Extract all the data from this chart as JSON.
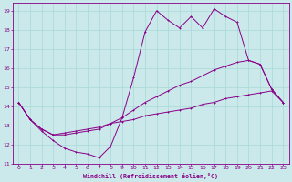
{
  "xlabel": "Windchill (Refroidissement éolien,°C)",
  "xlim": [
    -0.5,
    23.5
  ],
  "ylim": [
    11,
    19.4
  ],
  "xticks": [
    0,
    1,
    2,
    3,
    4,
    5,
    6,
    7,
    8,
    9,
    10,
    11,
    12,
    13,
    14,
    15,
    16,
    17,
    18,
    19,
    20,
    21,
    22,
    23
  ],
  "yticks": [
    11,
    12,
    13,
    14,
    15,
    16,
    17,
    18,
    19
  ],
  "background_color": "#cbe9ea",
  "line_color": "#880088",
  "grid_color": "#a8d8d8",
  "line1_x": [
    0,
    1,
    2,
    3,
    4,
    5,
    6,
    7,
    8,
    9,
    10,
    11,
    12,
    13,
    14,
    15,
    16,
    17,
    18,
    19,
    20,
    21,
    22,
    23
  ],
  "line1_y": [
    14.2,
    13.3,
    12.7,
    12.2,
    11.8,
    11.6,
    11.5,
    11.3,
    11.9,
    13.4,
    15.5,
    17.9,
    19.0,
    18.5,
    18.1,
    18.7,
    18.1,
    19.1,
    18.7,
    18.4,
    16.4,
    16.2,
    14.9,
    14.2
  ],
  "line2_x": [
    0,
    1,
    2,
    3,
    4,
    5,
    6,
    7,
    8,
    9,
    10,
    11,
    12,
    13,
    14,
    15,
    16,
    17,
    18,
    19,
    20,
    21,
    22,
    23
  ],
  "line2_y": [
    14.2,
    13.3,
    12.8,
    12.5,
    12.5,
    12.6,
    12.7,
    12.8,
    13.1,
    13.4,
    13.8,
    14.2,
    14.5,
    14.8,
    15.1,
    15.3,
    15.6,
    15.9,
    16.1,
    16.3,
    16.4,
    16.2,
    14.9,
    14.2
  ],
  "line3_x": [
    0,
    1,
    2,
    3,
    4,
    5,
    6,
    7,
    8,
    9,
    10,
    11,
    12,
    13,
    14,
    15,
    16,
    17,
    18,
    19,
    20,
    21,
    22,
    23
  ],
  "line3_y": [
    14.2,
    13.3,
    12.8,
    12.5,
    12.6,
    12.7,
    12.8,
    12.9,
    13.1,
    13.2,
    13.3,
    13.5,
    13.6,
    13.7,
    13.8,
    13.9,
    14.1,
    14.2,
    14.4,
    14.5,
    14.6,
    14.7,
    14.8,
    14.2
  ]
}
